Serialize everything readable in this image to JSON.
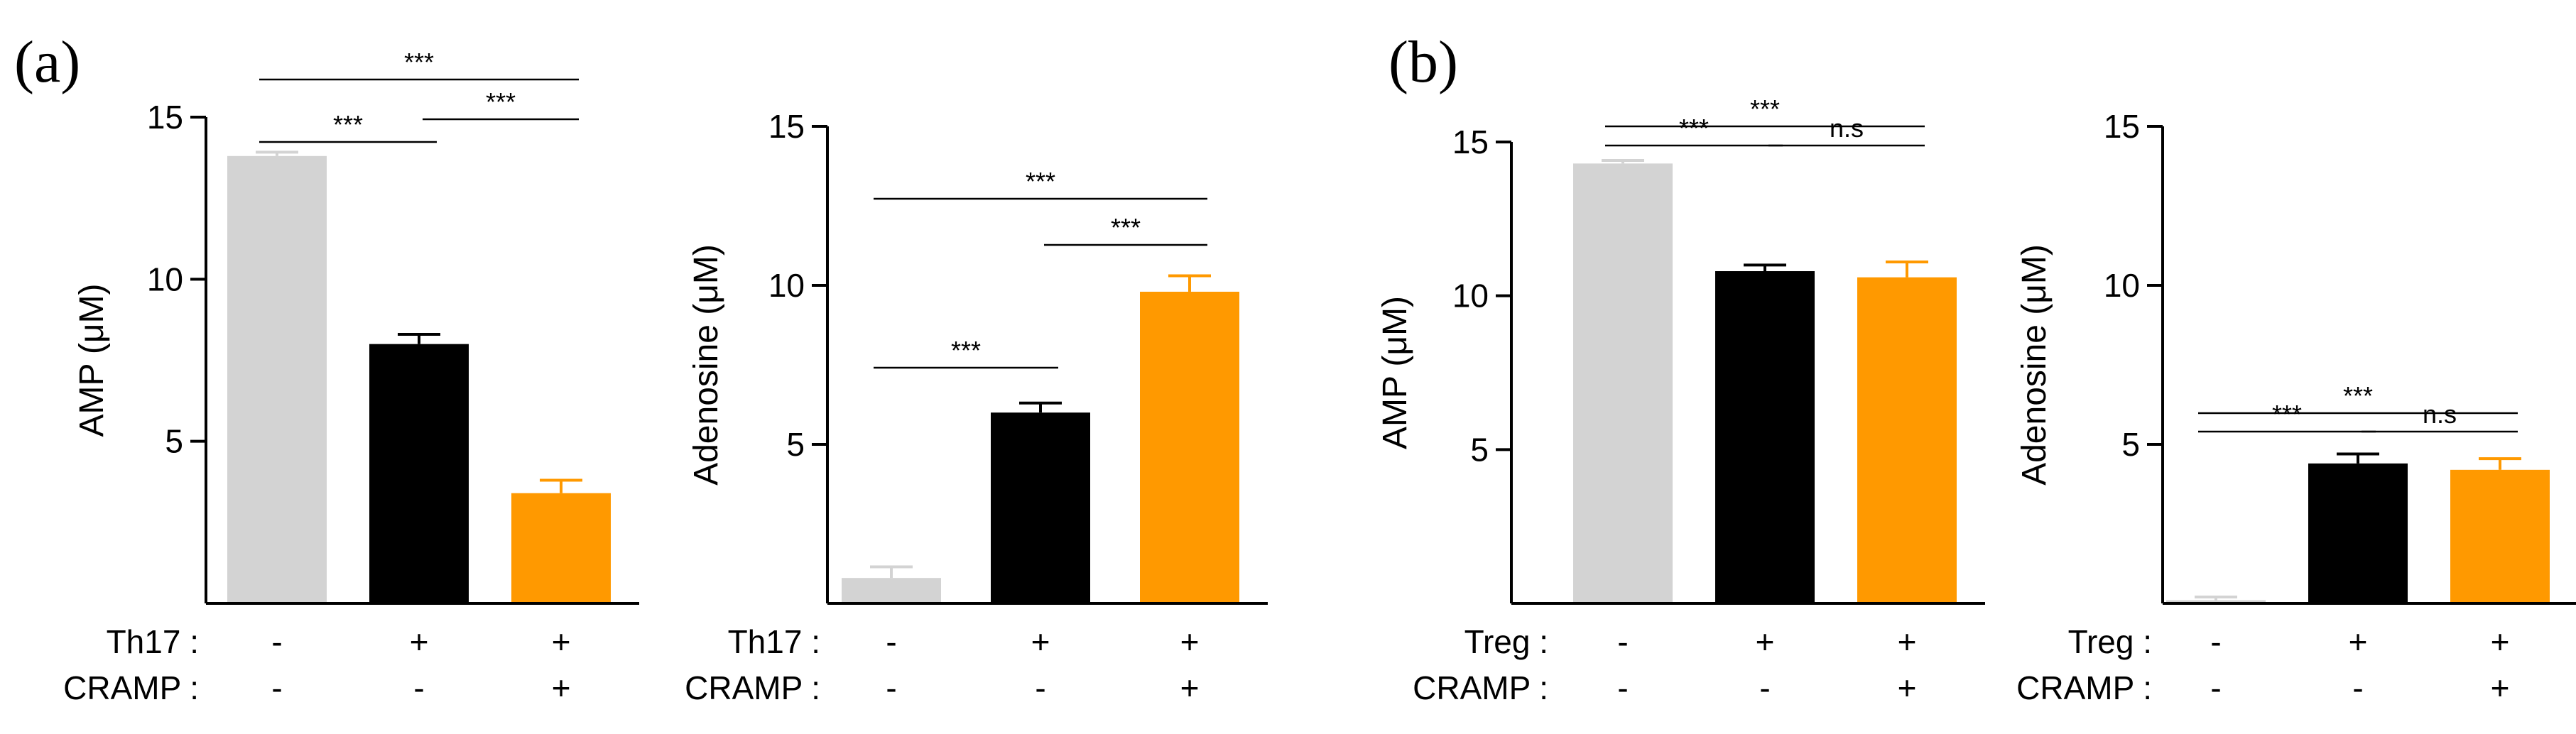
{
  "chart_data": [
    {
      "type": "bar",
      "panel_label": "(a)",
      "ylabel": "AMP (μM)",
      "ylim": [
        0,
        15
      ],
      "yticks": [
        5,
        10,
        15
      ],
      "categories": [
        "Th17 -/CRAMP -",
        "Th17 +/CRAMP -",
        "Th17 +/CRAMP +"
      ],
      "values": [
        13.8,
        8.0,
        3.4
      ],
      "errors": [
        0.12,
        0.3,
        0.4
      ],
      "colors": [
        "#d3d3d3",
        "#000000",
        "#ff9900"
      ],
      "conditions": [
        {
          "label": "Th17 :",
          "signs": [
            "-",
            "+",
            "+"
          ]
        },
        {
          "label": "CRAMP :",
          "signs": [
            "-",
            "-",
            "+"
          ]
        }
      ],
      "significance": [
        {
          "from": 0,
          "to": 1,
          "text": "***",
          "level": 1
        },
        {
          "from": 1,
          "to": 2,
          "text": "***",
          "level": 2
        },
        {
          "from": 0,
          "to": 2,
          "text": "***",
          "level": 3
        }
      ]
    },
    {
      "type": "bar",
      "panel_label": "",
      "ylabel": "Adenosine (μM)",
      "ylim": [
        0,
        15
      ],
      "yticks": [
        5,
        10,
        15
      ],
      "categories": [
        "Th17 -/CRAMP -",
        "Th17 +/CRAMP -",
        "Th17 +/CRAMP +"
      ],
      "values": [
        0.8,
        6.0,
        9.8
      ],
      "errors": [
        0.35,
        0.3,
        0.5
      ],
      "colors": [
        "#d3d3d3",
        "#000000",
        "#ff9900"
      ],
      "conditions": [
        {
          "label": "Th17 :",
          "signs": [
            "-",
            "+",
            "+"
          ]
        },
        {
          "label": "CRAMP :",
          "signs": [
            "-",
            "-",
            "+"
          ]
        }
      ],
      "significance": [
        {
          "from": 0,
          "to": 1,
          "text": "***",
          "level": 1
        },
        {
          "from": 1,
          "to": 2,
          "text": "***",
          "level": 2
        },
        {
          "from": 0,
          "to": 2,
          "text": "***",
          "level": 3
        }
      ]
    },
    {
      "type": "bar",
      "panel_label": "(b)",
      "ylabel": "AMP (μM)",
      "ylim": [
        0,
        15
      ],
      "yticks": [
        5,
        10,
        15
      ],
      "categories": [
        "Treg -/CRAMP -",
        "Treg +/CRAMP -",
        "Treg +/CRAMP +"
      ],
      "values": [
        14.3,
        10.8,
        10.6
      ],
      "errors": [
        0.1,
        0.2,
        0.5
      ],
      "colors": [
        "#d3d3d3",
        "#000000",
        "#ff9900"
      ],
      "conditions": [
        {
          "label": "Treg :",
          "signs": [
            "-",
            "+",
            "+"
          ]
        },
        {
          "label": "CRAMP :",
          "signs": [
            "-",
            "-",
            "+"
          ]
        }
      ],
      "significance": [
        {
          "from": 0,
          "to": 1,
          "text": "***",
          "level": 1
        },
        {
          "from": 1,
          "to": 2,
          "text": "n.s",
          "level": 1
        },
        {
          "from": 0,
          "to": 2,
          "text": "***",
          "level": 2
        }
      ]
    },
    {
      "type": "bar",
      "panel_label": "",
      "ylabel": "Adenosine (μM)",
      "ylim": [
        0,
        15
      ],
      "yticks": [
        5,
        10,
        15
      ],
      "categories": [
        "Treg -/CRAMP -",
        "Treg +/CRAMP -",
        "Treg +/CRAMP +"
      ],
      "values": [
        0.1,
        4.4,
        4.2
      ],
      "errors": [
        0.1,
        0.3,
        0.35
      ],
      "colors": [
        "#d3d3d3",
        "#000000",
        "#ff9900"
      ],
      "conditions": [
        {
          "label": "Treg :",
          "signs": [
            "-",
            "+",
            "+"
          ]
        },
        {
          "label": "CRAMP :",
          "signs": [
            "-",
            "-",
            "+"
          ]
        }
      ],
      "significance": [
        {
          "from": 0,
          "to": 1,
          "text": "***",
          "level": 1
        },
        {
          "from": 1,
          "to": 2,
          "text": "n.s",
          "level": 1
        },
        {
          "from": 0,
          "to": 2,
          "text": "***",
          "level": 2
        }
      ]
    }
  ]
}
